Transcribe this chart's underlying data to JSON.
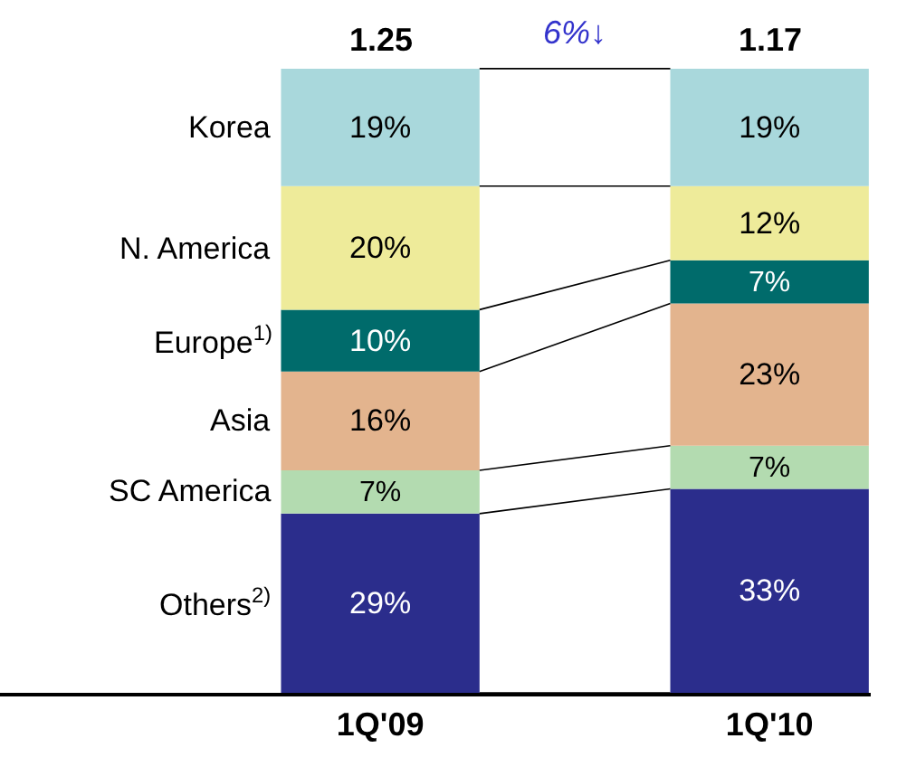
{
  "chart_data": {
    "type": "bar",
    "stacked": true,
    "legend": false,
    "tick_labels": "x",
    "categories": [
      "1Q'09",
      "1Q'10"
    ],
    "series": [
      {
        "name": "Others$^{2)}$",
        "color": "#2b2d8c",
        "values": [
          29,
          33
        ],
        "value_labels": [
          "29%",
          "33%"
        ]
      },
      {
        "name": "SC America",
        "color": "#b3dbb0",
        "values": [
          7,
          7
        ],
        "value_labels": [
          "7%",
          "7%"
        ]
      },
      {
        "name": "Asia",
        "color": "#e3b48e",
        "values": [
          16,
          23
        ],
        "value_labels": [
          "16%",
          "23%"
        ]
      },
      {
        "name": "Europe$^{1)}$",
        "color": "#006b6b",
        "values": [
          10,
          7
        ],
        "value_labels": [
          "10%",
          "7%"
        ]
      },
      {
        "name": "N. America",
        "color": "#eeeb9a",
        "values": [
          20,
          12
        ],
        "value_labels": [
          "20%",
          "12%"
        ]
      },
      {
        "name": "Korea",
        "color": "#a9d8dc",
        "values": [
          19,
          19
        ],
        "value_labels": [
          "19%",
          "19%"
        ]
      }
    ],
    "annotations": [
      "1.25",
      "1.17",
      "6%↓"
    ]
  }
}
